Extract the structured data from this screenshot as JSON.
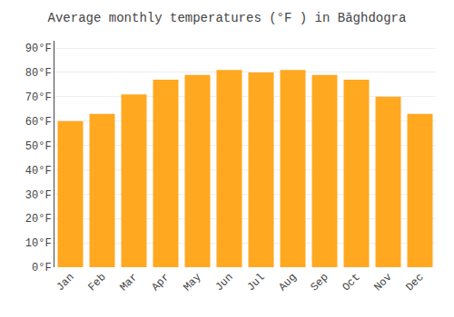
{
  "chart_data": {
    "type": "bar",
    "title": "Average monthly temperatures (°F ) in Bāghdogra",
    "categories": [
      "Jan",
      "Feb",
      "Mar",
      "Apr",
      "May",
      "Jun",
      "Jul",
      "Aug",
      "Sep",
      "Oct",
      "Nov",
      "Dec"
    ],
    "values": [
      60,
      63,
      71,
      77,
      79,
      81,
      80,
      81,
      79,
      77,
      70,
      63
    ],
    "color": "#FFA820",
    "ylim": [
      0,
      93
    ],
    "yticks": [
      {
        "value": 0,
        "label": "0°F"
      },
      {
        "value": 10,
        "label": "10°F"
      },
      {
        "value": 20,
        "label": "20°F"
      },
      {
        "value": 30,
        "label": "30°F"
      },
      {
        "value": 40,
        "label": "40°F"
      },
      {
        "value": 50,
        "label": "50°F"
      },
      {
        "value": 60,
        "label": "60°F"
      },
      {
        "value": 70,
        "label": "70°F"
      },
      {
        "value": 80,
        "label": "80°F"
      },
      {
        "value": 90,
        "label": "90°F"
      }
    ],
    "grid": true
  }
}
